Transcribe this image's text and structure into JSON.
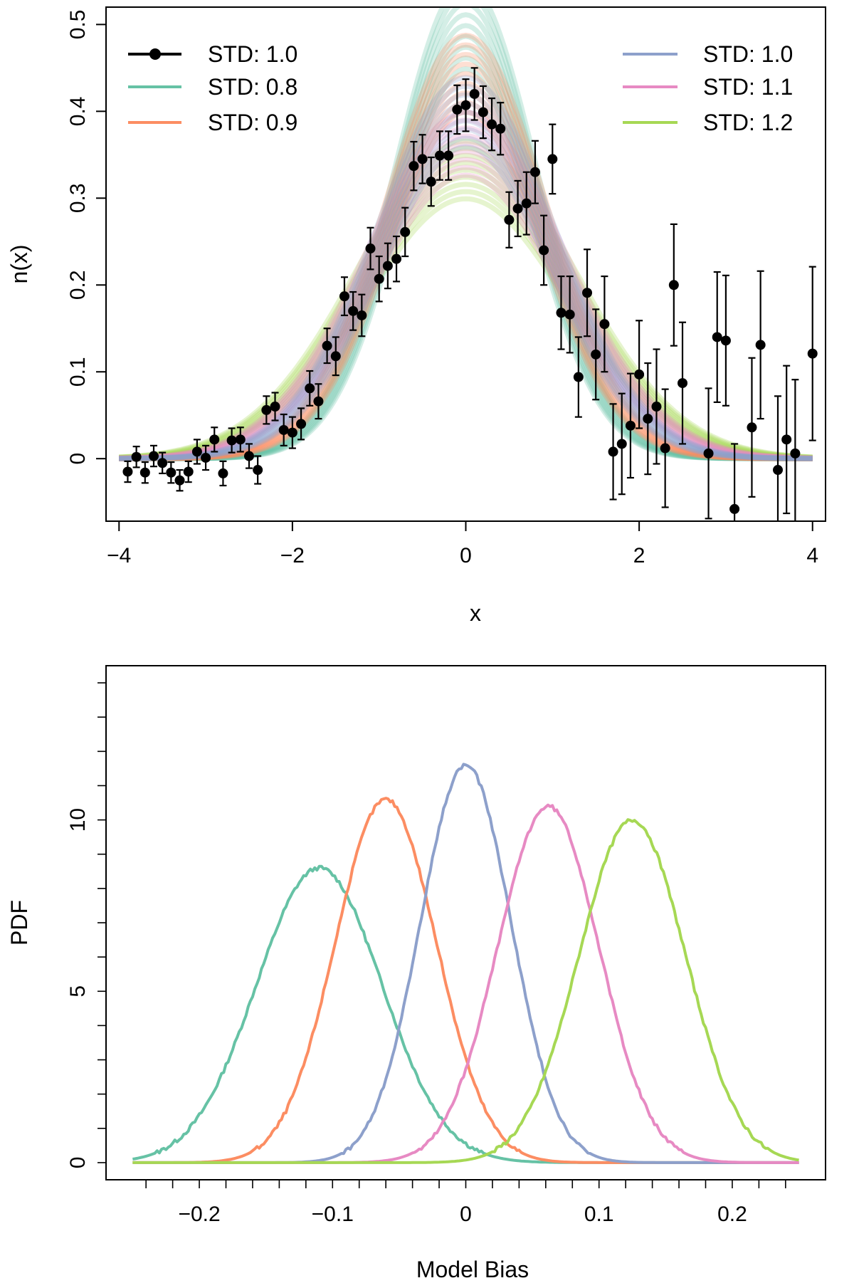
{
  "chart_data": [
    {
      "type": "scatter",
      "panel": "top",
      "xlabel": "x",
      "ylabel": "n(x)",
      "xlim": [
        -4.15,
        4.15
      ],
      "ylim": [
        -0.072,
        0.52
      ],
      "xticks": [
        -4,
        -2,
        0,
        2,
        4
      ],
      "xtick_labels": [
        "−4",
        "−2",
        "0",
        "2",
        "4"
      ],
      "yticks": [
        0,
        0.1,
        0.2,
        0.3,
        0.4,
        0.5
      ],
      "ytick_labels": [
        "0",
        "0.1",
        "0.2",
        "0.3",
        "0.4",
        "0.5"
      ],
      "data_series": {
        "name": "STD: 1.0",
        "color": "#000000",
        "x": [
          -3.9,
          -3.8,
          -3.7,
          -3.6,
          -3.5,
          -3.4,
          -3.3,
          -3.2,
          -3.1,
          -3.0,
          -2.9,
          -2.8,
          -2.7,
          -2.6,
          -2.5,
          -2.4,
          -2.3,
          -2.2,
          -2.1,
          -2.0,
          -1.9,
          -1.8,
          -1.7,
          -1.6,
          -1.5,
          -1.4,
          -1.3,
          -1.2,
          -1.1,
          -1.0,
          -0.9,
          -0.8,
          -0.7,
          -0.6,
          -0.5,
          -0.4,
          -0.3,
          -0.2,
          -0.1,
          0.0,
          0.1,
          0.2,
          0.3,
          0.4,
          0.5,
          0.6,
          0.7,
          0.8,
          0.9,
          1.0,
          1.1,
          1.2,
          1.3,
          1.4,
          1.5,
          1.6,
          1.7,
          1.8,
          1.9,
          2.0,
          2.1,
          2.2,
          2.3,
          2.4,
          2.5,
          2.8,
          2.9,
          3.0,
          3.1,
          3.3,
          3.4,
          3.6,
          3.7,
          3.8,
          4.0
        ],
        "y": [
          -0.015,
          0.002,
          -0.016,
          0.003,
          -0.005,
          -0.016,
          -0.025,
          -0.015,
          0.008,
          0.001,
          0.022,
          -0.017,
          0.021,
          0.022,
          0.003,
          -0.013,
          0.056,
          0.06,
          0.033,
          0.03,
          0.04,
          0.081,
          0.066,
          0.13,
          0.118,
          0.187,
          0.17,
          0.165,
          0.242,
          0.207,
          0.222,
          0.23,
          0.261,
          0.337,
          0.345,
          0.319,
          0.349,
          0.349,
          0.402,
          0.407,
          0.42,
          0.399,
          0.385,
          0.38,
          0.275,
          0.288,
          0.294,
          0.33,
          0.24,
          0.345,
          0.168,
          0.166,
          0.094,
          0.191,
          0.12,
          0.155,
          0.008,
          0.017,
          0.038,
          0.097,
          0.046,
          0.06,
          0.012,
          0.2,
          0.087,
          0.006,
          0.14,
          0.136,
          -0.058,
          0.036,
          0.131,
          -0.013,
          0.022,
          0.006,
          0.121
        ],
        "err": [
          0.012,
          0.012,
          0.012,
          0.012,
          0.012,
          0.012,
          0.012,
          0.012,
          0.014,
          0.014,
          0.014,
          0.014,
          0.014,
          0.014,
          0.014,
          0.016,
          0.016,
          0.016,
          0.018,
          0.018,
          0.018,
          0.02,
          0.02,
          0.02,
          0.022,
          0.022,
          0.022,
          0.024,
          0.024,
          0.026,
          0.026,
          0.026,
          0.028,
          0.028,
          0.028,
          0.028,
          0.028,
          0.028,
          0.028,
          0.03,
          0.03,
          0.03,
          0.03,
          0.03,
          0.032,
          0.032,
          0.036,
          0.036,
          0.04,
          0.04,
          0.042,
          0.044,
          0.046,
          0.05,
          0.052,
          0.055,
          0.055,
          0.058,
          0.06,
          0.062,
          0.064,
          0.066,
          0.068,
          0.07,
          0.07,
          0.075,
          0.075,
          0.075,
          0.075,
          0.08,
          0.085,
          0.085,
          0.085,
          0.085,
          0.1
        ]
      },
      "model_series": [
        {
          "name": "STD: 0.8",
          "std": 0.8,
          "color": "#66c2a5"
        },
        {
          "name": "STD: 0.9",
          "std": 0.9,
          "color": "#fc8d62"
        },
        {
          "name": "STD: 1.0",
          "std": 1.0,
          "color": "#8da0cb"
        },
        {
          "name": "STD: 1.1",
          "std": 1.1,
          "color": "#e78ac3"
        },
        {
          "name": "STD: 1.2",
          "std": 1.2,
          "color": "#a6d854"
        }
      ],
      "legend_left": [
        "STD: 1.0",
        "STD: 0.8",
        "STD: 0.9"
      ],
      "legend_right": [
        "STD: 1.0",
        "STD: 1.1",
        "STD: 1.2"
      ]
    },
    {
      "type": "line",
      "panel": "bottom",
      "xlabel": "Model Bias",
      "ylabel": "PDF",
      "xlim": [
        -0.27,
        0.27
      ],
      "ylim": [
        -0.5,
        14.5
      ],
      "xticks": [
        -0.2,
        -0.1,
        0,
        0.1,
        0.2
      ],
      "xtick_labels": [
        "−0.2",
        "−0.1",
        "0",
        "0.1",
        "0.2"
      ],
      "yticks": [
        0,
        5,
        10
      ],
      "ytick_labels": [
        "0",
        "5",
        "10"
      ],
      "series": [
        {
          "name": "STD: 0.8",
          "color": "#66c2a5",
          "mean": -0.11,
          "sd": 0.047,
          "peak": 8.6
        },
        {
          "name": "STD: 0.9",
          "color": "#fc8d62",
          "mean": -0.06,
          "sd": 0.038,
          "peak": 10.6
        },
        {
          "name": "STD: 1.0",
          "color": "#8da0cb",
          "mean": 0.0,
          "sd": 0.034,
          "peak": 11.6
        },
        {
          "name": "STD: 1.1",
          "color": "#e78ac3",
          "mean": 0.062,
          "sd": 0.038,
          "peak": 10.4
        },
        {
          "name": "STD: 1.2",
          "color": "#a6d854",
          "mean": 0.125,
          "sd": 0.04,
          "peak": 10.0
        }
      ]
    }
  ]
}
